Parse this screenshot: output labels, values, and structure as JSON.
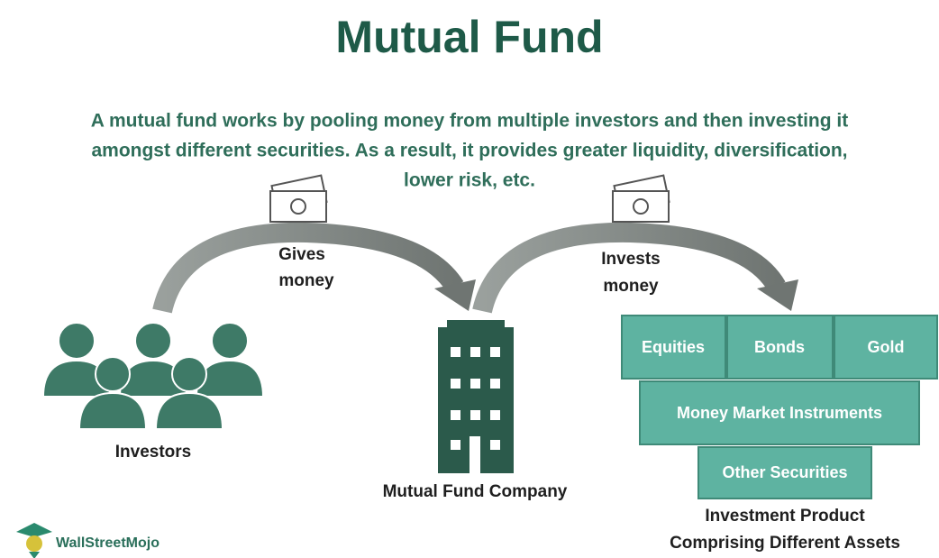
{
  "header": {
    "title": "Mutual Fund",
    "description": [
      "A mutual fund works by pooling money from multiple investors and then investing it",
      "amongst different securities. As a result, it provides greater liquidity, diversification,",
      "lower risk, etc."
    ]
  },
  "flows": [
    {
      "label": [
        "Gives",
        "money"
      ]
    },
    {
      "label": [
        "Invests",
        "money"
      ]
    }
  ],
  "nodes": {
    "investors": "Investors",
    "company": "Mutual Fund Company",
    "product": [
      "Investment Product",
      "Comprising Different Assets"
    ]
  },
  "assets": [
    "Equities",
    "Bonds",
    "Gold",
    "Money Market Instruments",
    "Other Securities"
  ],
  "logo": "WallStreetMojo"
}
